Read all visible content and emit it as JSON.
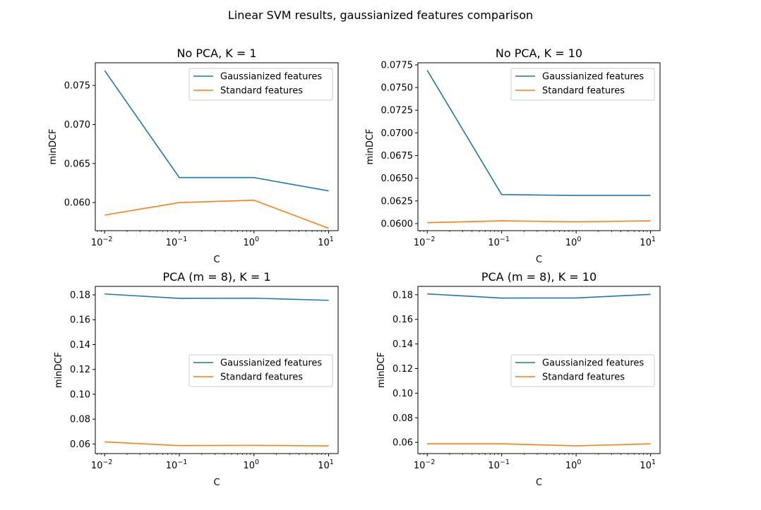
{
  "figure": {
    "suptitle": "Linear SVM results, gaussianized features comparison"
  },
  "chart_data": [
    {
      "type": "line",
      "title": "No PCA, K = 1",
      "xlabel": "C",
      "ylabel": "minDCF",
      "xscale": "log",
      "x": [
        0.01,
        0.1,
        1,
        10
      ],
      "xlim": [
        0.0075,
        13.4
      ],
      "ylim": [
        0.0564,
        0.0779
      ],
      "yticks": [
        0.06,
        0.065,
        0.07,
        0.075
      ],
      "ytick_labels": [
        "0.060",
        "0.065",
        "0.070",
        "0.075"
      ],
      "xtick_labels": [
        "10",
        "10",
        "10",
        "10"
      ],
      "xtick_exponents": [
        "−2",
        "−1",
        "0",
        "1"
      ],
      "legend_loc": "top-right",
      "grid": false,
      "series": [
        {
          "name": "Gaussianized features",
          "color": "#1f77b4",
          "values": [
            0.0769,
            0.0632,
            0.0632,
            0.0615
          ]
        },
        {
          "name": "Standard features",
          "color": "#ff7f0e",
          "values": [
            0.0584,
            0.06,
            0.0603,
            0.0567
          ]
        }
      ]
    },
    {
      "type": "line",
      "title": "No PCA, K = 10",
      "xlabel": "C",
      "ylabel": "minDCF",
      "xscale": "log",
      "x": [
        0.01,
        0.1,
        1,
        10
      ],
      "xlim": [
        0.0075,
        13.4
      ],
      "ylim": [
        0.05922,
        0.07773
      ],
      "yticks": [
        0.06,
        0.0625,
        0.065,
        0.0675,
        0.07,
        0.0725,
        0.075,
        0.0775
      ],
      "ytick_labels": [
        "0.0600",
        "0.0625",
        "0.0650",
        "0.0675",
        "0.0700",
        "0.0725",
        "0.0750",
        "0.0775"
      ],
      "xtick_labels": [
        "10",
        "10",
        "10",
        "10"
      ],
      "xtick_exponents": [
        "−2",
        "−1",
        "0",
        "1"
      ],
      "legend_loc": "top-right",
      "grid": false,
      "series": [
        {
          "name": "Gaussianized features",
          "color": "#1f77b4",
          "values": [
            0.0769,
            0.0632,
            0.0631,
            0.0631
          ]
        },
        {
          "name": "Standard features",
          "color": "#ff7f0e",
          "values": [
            0.0601,
            0.0603,
            0.0602,
            0.0603
          ]
        }
      ]
    },
    {
      "type": "line",
      "title": "PCA (m = 8), K = 1",
      "xlabel": "C",
      "ylabel": "minDCF",
      "xscale": "log",
      "x": [
        0.01,
        0.1,
        1,
        10
      ],
      "xlim": [
        0.0075,
        13.4
      ],
      "ylim": [
        0.0523,
        0.1868
      ],
      "yticks": [
        0.06,
        0.08,
        0.1,
        0.12,
        0.14,
        0.16,
        0.18
      ],
      "ytick_labels": [
        "0.06",
        "0.08",
        "0.10",
        "0.12",
        "0.14",
        "0.16",
        "0.18"
      ],
      "xtick_labels": [
        "10",
        "10",
        "10",
        "10"
      ],
      "xtick_exponents": [
        "−2",
        "−1",
        "0",
        "1"
      ],
      "legend_loc": "center-right",
      "grid": false,
      "series": [
        {
          "name": "Gaussianized features",
          "color": "#1f77b4",
          "values": [
            0.1807,
            0.1772,
            0.1773,
            0.1756
          ]
        },
        {
          "name": "Standard features",
          "color": "#ff7f0e",
          "values": [
            0.0617,
            0.0587,
            0.0589,
            0.0585
          ]
        }
      ]
    },
    {
      "type": "line",
      "title": "PCA (m = 8), K = 10",
      "xlabel": "C",
      "ylabel": "minDCF",
      "xscale": "log",
      "x": [
        0.01,
        0.1,
        1,
        10
      ],
      "xlim": [
        0.0075,
        13.4
      ],
      "ylim": [
        0.0509,
        0.1868
      ],
      "yticks": [
        0.06,
        0.08,
        0.1,
        0.12,
        0.14,
        0.16,
        0.18
      ],
      "ytick_labels": [
        "0.06",
        "0.08",
        "0.10",
        "0.12",
        "0.14",
        "0.16",
        "0.18"
      ],
      "xtick_labels": [
        "10",
        "10",
        "10",
        "10"
      ],
      "xtick_exponents": [
        "−2",
        "−1",
        "0",
        "1"
      ],
      "legend_loc": "center-right",
      "grid": false,
      "series": [
        {
          "name": "Gaussianized features",
          "color": "#1f77b4",
          "values": [
            0.1807,
            0.1773,
            0.1774,
            0.1803
          ]
        },
        {
          "name": "Standard features",
          "color": "#ff7f0e",
          "values": [
            0.0588,
            0.0588,
            0.0572,
            0.0588
          ]
        }
      ]
    }
  ]
}
